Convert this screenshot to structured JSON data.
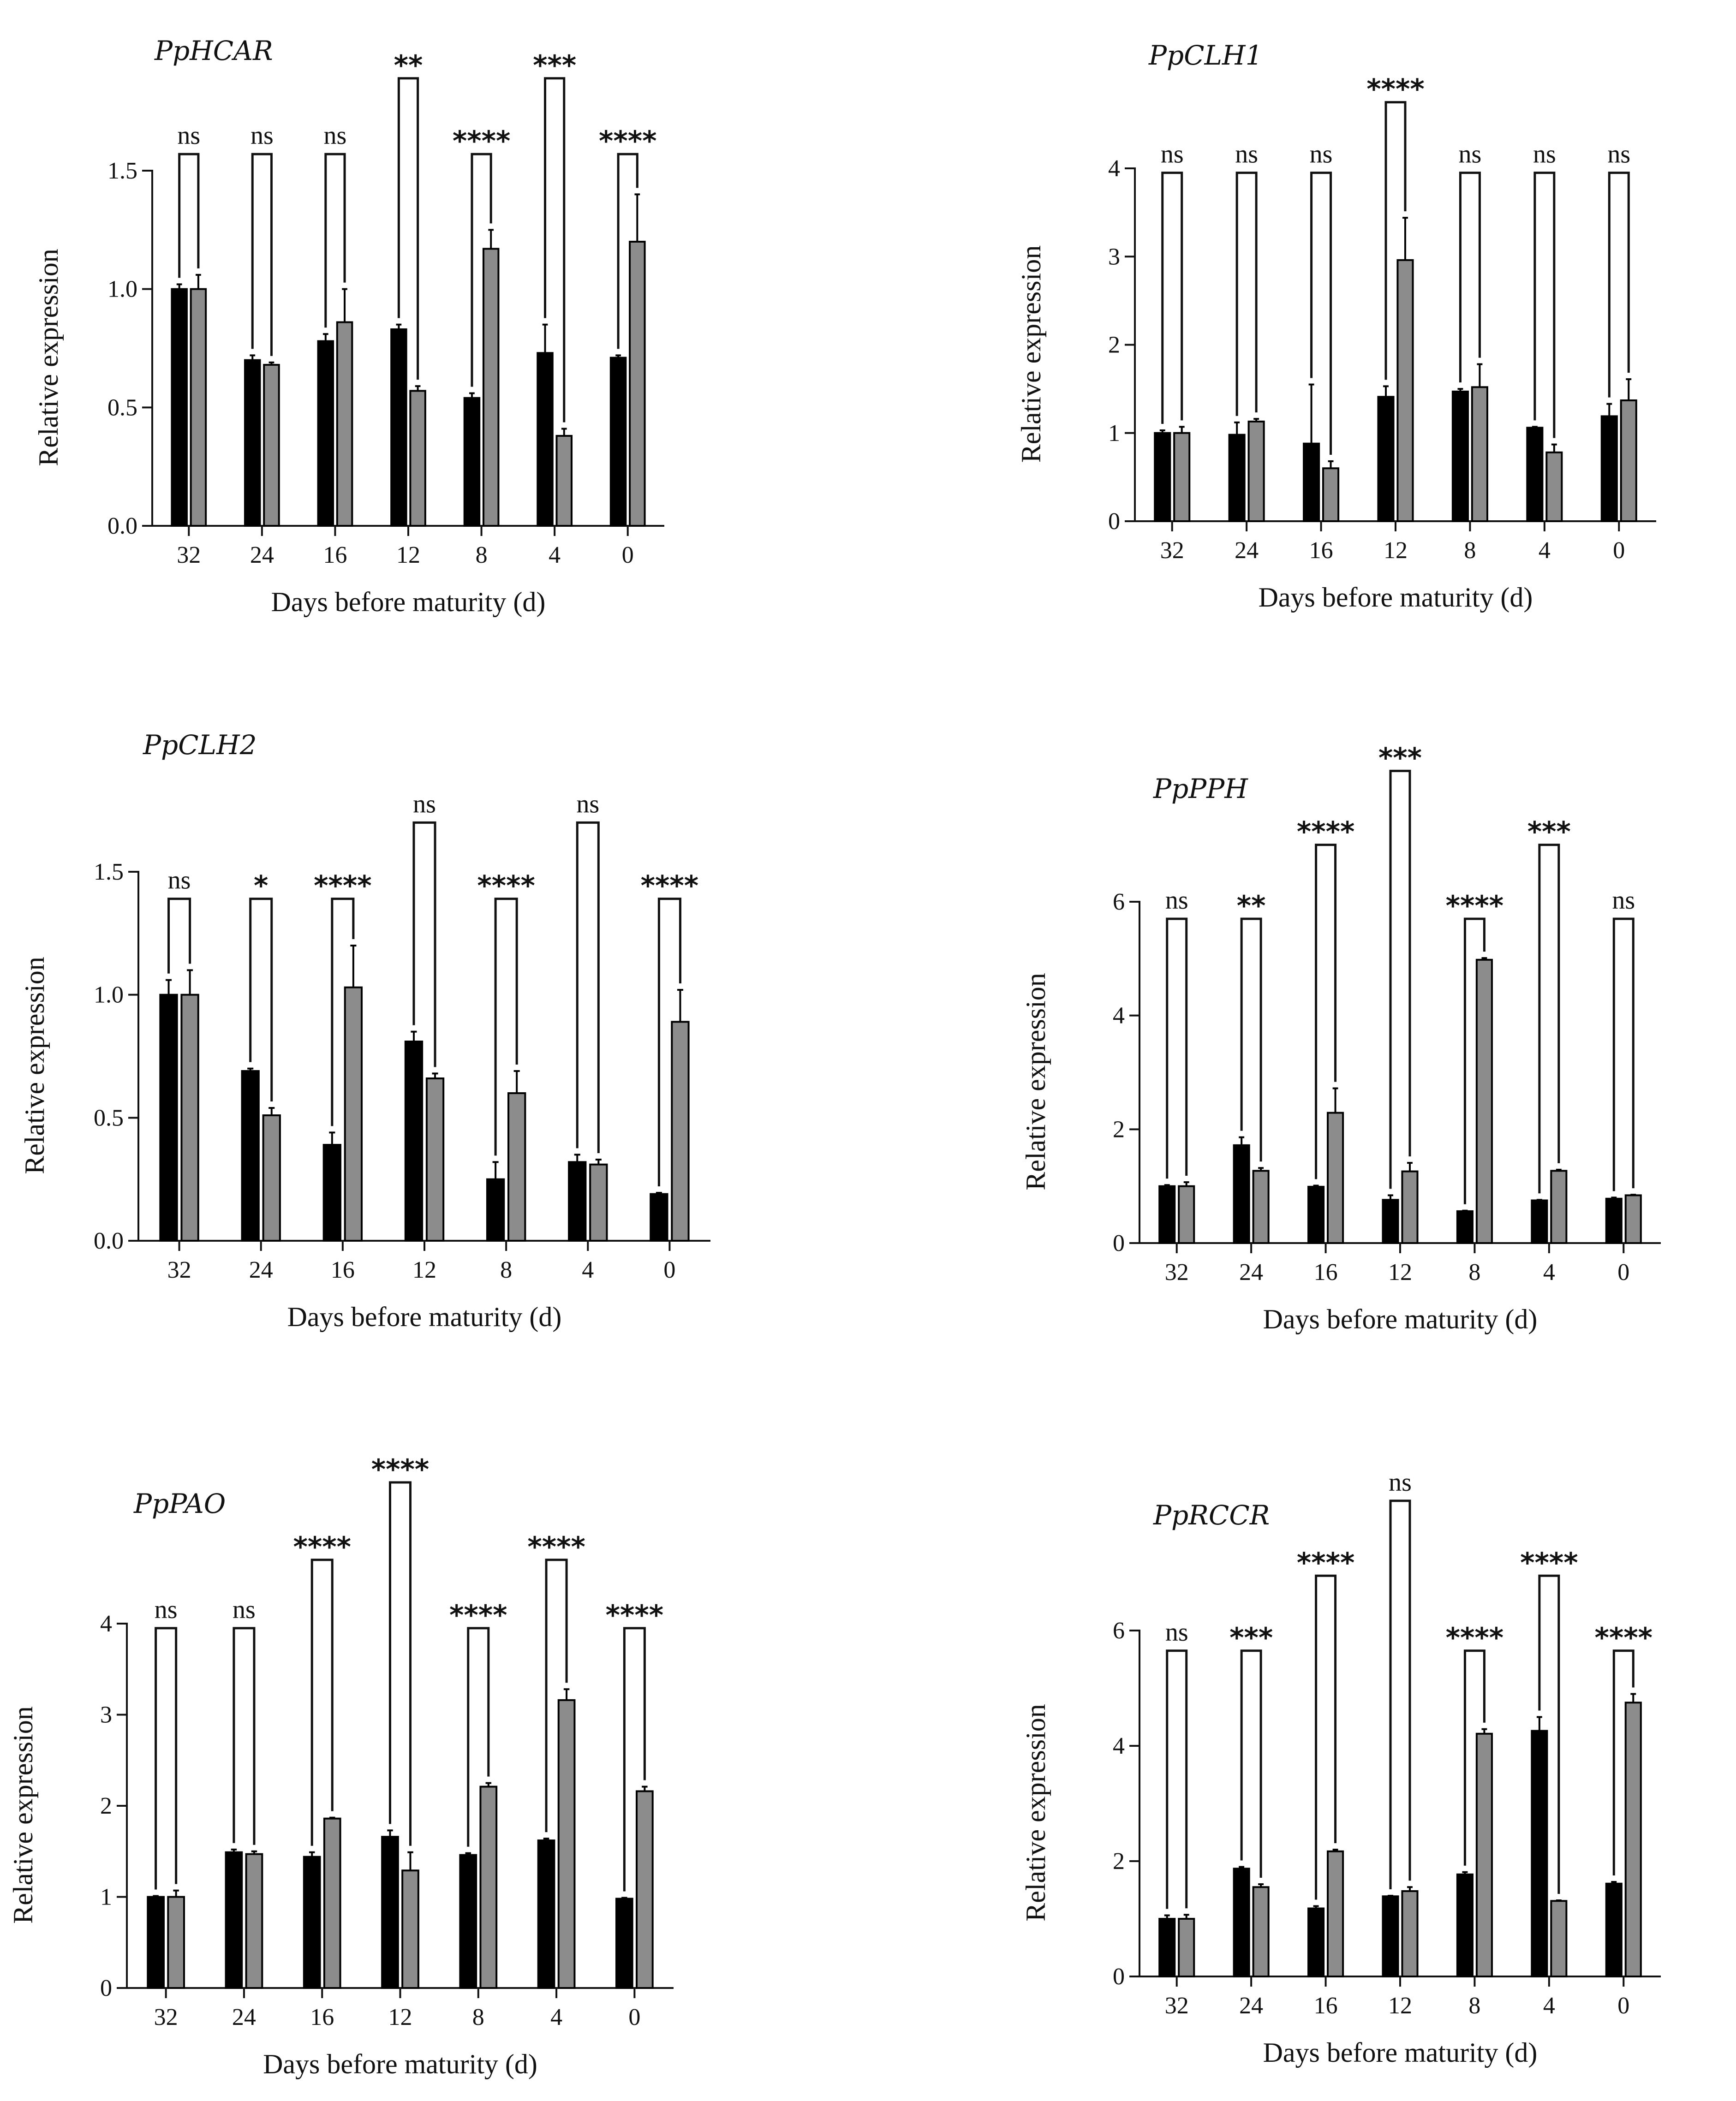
{
  "chart_data": [
    {
      "type": "bar",
      "title": "PpHCAR",
      "xlabel": "Days before maturity (d)",
      "ylabel": "Relative expression",
      "categories": [
        "32",
        "24",
        "16",
        "12",
        "8",
        "4",
        "0"
      ],
      "ylim": [
        0,
        1.5
      ],
      "yticks": [
        0.0,
        0.5,
        1.0,
        1.5
      ],
      "ytick_labels": [
        "0.0",
        "0.5",
        "1.0",
        "1.5"
      ],
      "series": [
        {
          "name": "black",
          "color": "#000000",
          "values": [
            1.0,
            0.7,
            0.78,
            0.83,
            0.54,
            0.73,
            0.71
          ],
          "errors": [
            0.02,
            0.02,
            0.03,
            0.02,
            0.02,
            0.12,
            0.01
          ]
        },
        {
          "name": "grey",
          "color": "#8c8c8c",
          "values": [
            1.0,
            0.68,
            0.86,
            0.57,
            1.17,
            0.38,
            1.2
          ],
          "errors": [
            0.06,
            0.01,
            0.14,
            0.02,
            0.08,
            0.03,
            0.2
          ]
        }
      ],
      "significance": [
        {
          "label": "ns",
          "bracket": 1.57
        },
        {
          "label": "ns",
          "bracket": 1.57
        },
        {
          "label": "ns",
          "bracket": 1.57
        },
        {
          "label": "**",
          "bracket": 1.89
        },
        {
          "label": "****",
          "bracket": 1.57
        },
        {
          "label": "***",
          "bracket": 1.89
        },
        {
          "label": "****",
          "bracket": 1.57
        }
      ]
    },
    {
      "type": "bar",
      "title": "PpCLH1",
      "xlabel": "Days before maturity (d)",
      "ylabel": "Relative expression",
      "categories": [
        "32",
        "24",
        "16",
        "12",
        "8",
        "4",
        "0"
      ],
      "ylim": [
        0,
        4
      ],
      "yticks": [
        0,
        1,
        2,
        3,
        4
      ],
      "ytick_labels": [
        "0",
        "1",
        "2",
        "3",
        "4"
      ],
      "series": [
        {
          "name": "black",
          "color": "#000000",
          "values": [
            1.0,
            0.98,
            0.88,
            1.41,
            1.47,
            1.06,
            1.19
          ],
          "errors": [
            0.03,
            0.14,
            0.67,
            0.12,
            0.03,
            0.01,
            0.14
          ]
        },
        {
          "name": "grey",
          "color": "#8c8c8c",
          "values": [
            1.0,
            1.13,
            0.6,
            2.96,
            1.52,
            0.78,
            1.37
          ],
          "errors": [
            0.07,
            0.03,
            0.08,
            0.48,
            0.26,
            0.09,
            0.24
          ]
        }
      ],
      "significance": [
        {
          "label": "ns",
          "bracket": 3.95
        },
        {
          "label": "ns",
          "bracket": 3.95
        },
        {
          "label": "ns",
          "bracket": 3.95
        },
        {
          "label": "****",
          "bracket": 4.75
        },
        {
          "label": "ns",
          "bracket": 3.95
        },
        {
          "label": "ns",
          "bracket": 3.95
        },
        {
          "label": "ns",
          "bracket": 3.95
        }
      ]
    },
    {
      "type": "bar",
      "title": "PpCLH2",
      "xlabel": "Days before maturity (d)",
      "ylabel": "Relative expression",
      "categories": [
        "32",
        "24",
        "16",
        "12",
        "8",
        "4",
        "0"
      ],
      "ylim": [
        0,
        1.5
      ],
      "yticks": [
        0.0,
        0.5,
        1.0,
        1.5
      ],
      "ytick_labels": [
        "0.0",
        "0.5",
        "1.0",
        "1.5"
      ],
      "series": [
        {
          "name": "black",
          "color": "#000000",
          "values": [
            1.0,
            0.69,
            0.39,
            0.81,
            0.25,
            0.32,
            0.19
          ],
          "errors": [
            0.06,
            0.01,
            0.05,
            0.04,
            0.07,
            0.03,
            0.005
          ]
        },
        {
          "name": "grey",
          "color": "#8c8c8c",
          "values": [
            1.0,
            0.51,
            1.03,
            0.66,
            0.6,
            0.31,
            0.89
          ],
          "errors": [
            0.1,
            0.03,
            0.17,
            0.02,
            0.09,
            0.02,
            0.13
          ]
        }
      ],
      "significance": [
        {
          "label": "ns",
          "bracket": 1.39
        },
        {
          "label": "*",
          "bracket": 1.39
        },
        {
          "label": "****",
          "bracket": 1.39
        },
        {
          "label": "ns",
          "bracket": 1.7
        },
        {
          "label": "****",
          "bracket": 1.39
        },
        {
          "label": "ns",
          "bracket": 1.7
        },
        {
          "label": "****",
          "bracket": 1.39
        }
      ]
    },
    {
      "type": "bar",
      "title": "PpPPH",
      "xlabel": "Days before maturity (d)",
      "ylabel": "Relative expression",
      "categories": [
        "32",
        "24",
        "16",
        "12",
        "8",
        "4",
        "0"
      ],
      "ylim": [
        0,
        6
      ],
      "yticks": [
        0,
        2,
        4,
        6
      ],
      "ytick_labels": [
        "0",
        "2",
        "4",
        "6"
      ],
      "series": [
        {
          "name": "black",
          "color": "#000000",
          "values": [
            1.0,
            1.72,
            0.99,
            0.76,
            0.56,
            0.75,
            0.78
          ],
          "errors": [
            0.02,
            0.14,
            0.02,
            0.08,
            0.01,
            0.01,
            0.02
          ]
        },
        {
          "name": "grey",
          "color": "#8c8c8c",
          "values": [
            1.0,
            1.27,
            2.29,
            1.26,
            4.98,
            1.27,
            0.84
          ],
          "errors": [
            0.07,
            0.05,
            0.43,
            0.15,
            0.03,
            0.02,
            0.01
          ]
        }
      ],
      "significance": [
        {
          "label": "ns",
          "bracket": 5.7
        },
        {
          "label": "**",
          "bracket": 5.7
        },
        {
          "label": "****",
          "bracket": 7.0
        },
        {
          "label": "***",
          "bracket": 8.3
        },
        {
          "label": "****",
          "bracket": 5.7
        },
        {
          "label": "***",
          "bracket": 7.0
        },
        {
          "label": "ns",
          "bracket": 5.7
        }
      ]
    },
    {
      "type": "bar",
      "title": "PpPAO",
      "xlabel": "Days before maturity (d)",
      "ylabel": "Relative expression",
      "categories": [
        "32",
        "24",
        "16",
        "12",
        "8",
        "4",
        "0"
      ],
      "ylim": [
        0,
        4
      ],
      "yticks": [
        0,
        1,
        2,
        3,
        4
      ],
      "ytick_labels": [
        "0",
        "1",
        "2",
        "3",
        "4"
      ],
      "series": [
        {
          "name": "black",
          "color": "#000000",
          "values": [
            1.0,
            1.49,
            1.44,
            1.66,
            1.46,
            1.62,
            0.98
          ],
          "errors": [
            0.01,
            0.03,
            0.05,
            0.07,
            0.02,
            0.02,
            0.01
          ]
        },
        {
          "name": "grey",
          "color": "#8c8c8c",
          "values": [
            1.0,
            1.47,
            1.86,
            1.29,
            2.21,
            3.16,
            2.16
          ],
          "errors": [
            0.07,
            0.03,
            0.01,
            0.2,
            0.04,
            0.12,
            0.05
          ]
        }
      ],
      "significance": [
        {
          "label": "ns",
          "bracket": 3.95
        },
        {
          "label": "ns",
          "bracket": 3.95
        },
        {
          "label": "****",
          "bracket": 4.7
        },
        {
          "label": "****",
          "bracket": 5.55
        },
        {
          "label": "****",
          "bracket": 3.95
        },
        {
          "label": "****",
          "bracket": 4.7
        },
        {
          "label": "****",
          "bracket": 3.95
        }
      ]
    },
    {
      "type": "bar",
      "title": "PpRCCR",
      "xlabel": "Days before maturity (d)",
      "ylabel": "Relative expression",
      "categories": [
        "32",
        "24",
        "16",
        "12",
        "8",
        "4",
        "0"
      ],
      "ylim": [
        0,
        6
      ],
      "yticks": [
        0,
        2,
        4,
        6
      ],
      "ytick_labels": [
        "0",
        "2",
        "4",
        "6"
      ],
      "series": [
        {
          "name": "black",
          "color": "#000000",
          "values": [
            1.0,
            1.87,
            1.18,
            1.39,
            1.77,
            4.26,
            1.61
          ],
          "errors": [
            0.06,
            0.03,
            0.04,
            0.01,
            0.04,
            0.24,
            0.03
          ]
        },
        {
          "name": "grey",
          "color": "#8c8c8c",
          "values": [
            1.0,
            1.55,
            2.17,
            1.48,
            4.21,
            1.31,
            4.75
          ],
          "errors": [
            0.07,
            0.05,
            0.03,
            0.07,
            0.08,
            0.01,
            0.15
          ]
        }
      ],
      "significance": [
        {
          "label": "ns",
          "bracket": 5.65
        },
        {
          "label": "***",
          "bracket": 5.65
        },
        {
          "label": "****",
          "bracket": 6.95
        },
        {
          "label": "ns",
          "bracket": 8.25
        },
        {
          "label": "****",
          "bracket": 5.65
        },
        {
          "label": "****",
          "bracket": 6.95
        },
        {
          "label": "****",
          "bracket": 5.65
        }
      ]
    }
  ]
}
